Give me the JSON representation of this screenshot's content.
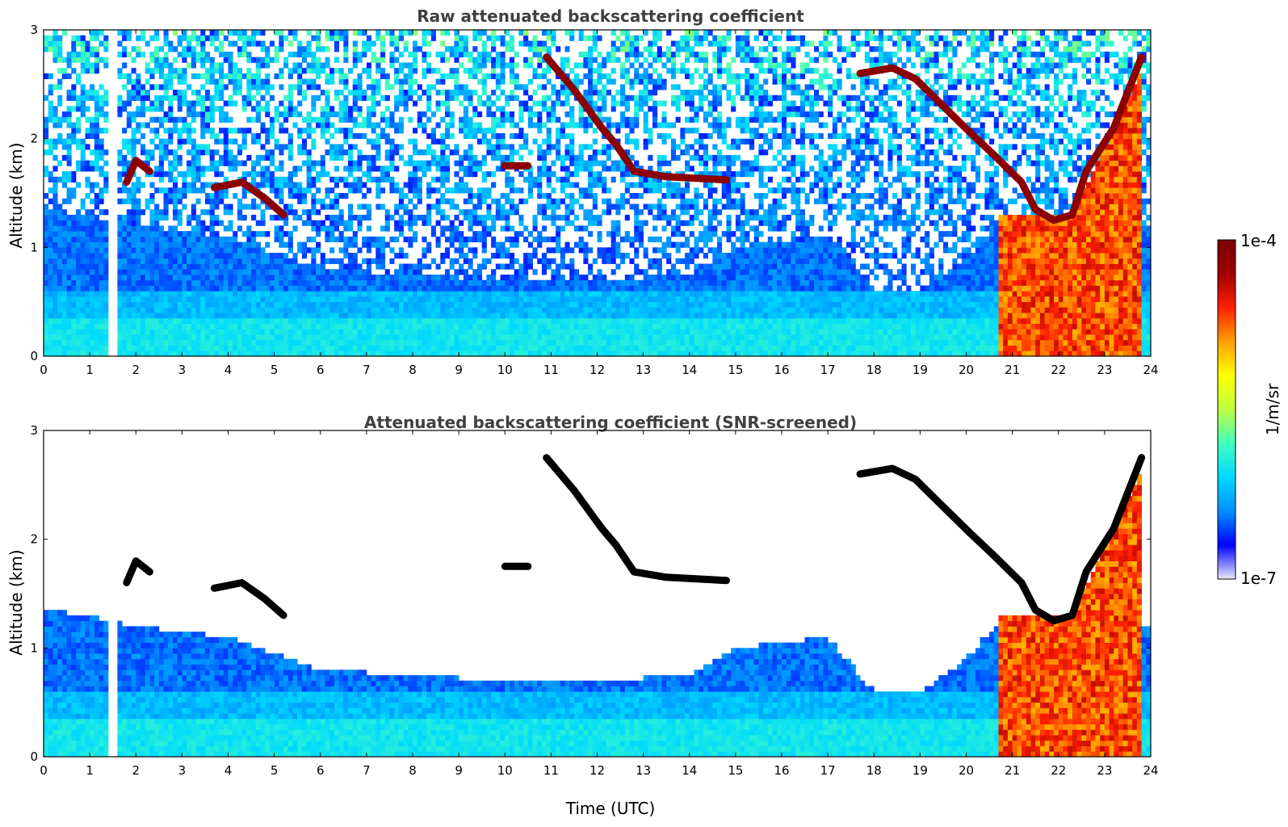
{
  "chart_data": [
    {
      "type": "heatmap",
      "title": "Raw attenuated backscattering coefficient",
      "xlabel": "",
      "ylabel": "Altitude (km)",
      "xlim": [
        0,
        24
      ],
      "ylim": [
        0,
        3
      ],
      "x_ticks": [
        "0",
        "1",
        "2",
        "3",
        "4",
        "5",
        "6",
        "7",
        "8",
        "9",
        "10",
        "11",
        "12",
        "13",
        "14",
        "15",
        "16",
        "17",
        "18",
        "19",
        "20",
        "21",
        "22",
        "23",
        "24"
      ],
      "y_ticks": [
        "0",
        "1",
        "2",
        "3"
      ],
      "snr_screened": false,
      "data_gaps_utc": [
        [
          1.45,
          1.56
        ],
        [
          5.0,
          5.03
        ],
        [
          5.09,
          5.12
        ],
        [
          5.17,
          5.2
        ]
      ],
      "boundary_layer_top_km": [
        [
          0,
          1.35
        ],
        [
          1,
          1.3
        ],
        [
          2,
          1.2
        ],
        [
          4,
          1.1
        ],
        [
          5,
          0.95
        ],
        [
          6,
          0.8
        ],
        [
          8,
          0.75
        ],
        [
          10,
          0.7
        ],
        [
          12,
          0.7
        ],
        [
          14,
          0.75
        ],
        [
          15,
          1.0
        ],
        [
          17,
          1.1
        ],
        [
          18,
          0.6
        ],
        [
          19,
          0.6
        ],
        [
          20,
          0.9
        ],
        [
          20.6,
          1.2
        ]
      ],
      "cloud_layers": [
        {
          "label": "",
          "points_utc_km": [
            [
              1.8,
              1.6
            ],
            [
              2.0,
              1.8
            ],
            [
              2.3,
              1.7
            ]
          ]
        },
        {
          "label": "",
          "points_utc_km": [
            [
              3.7,
              1.55
            ],
            [
              4.3,
              1.6
            ],
            [
              4.8,
              1.45
            ],
            [
              5.2,
              1.3
            ]
          ]
        },
        {
          "label": "",
          "points_utc_km": [
            [
              10.0,
              1.75
            ],
            [
              10.5,
              1.75
            ]
          ]
        },
        {
          "label": "",
          "points_utc_km": [
            [
              10.9,
              2.75
            ],
            [
              11.5,
              2.45
            ],
            [
              12.1,
              2.1
            ],
            [
              12.4,
              1.95
            ],
            [
              12.8,
              1.7
            ],
            [
              13.5,
              1.65
            ],
            [
              14.8,
              1.62
            ]
          ]
        },
        {
          "label": "",
          "points_utc_km": [
            [
              17.7,
              2.6
            ],
            [
              18.4,
              2.65
            ],
            [
              18.9,
              2.55
            ],
            [
              19.5,
              2.3
            ],
            [
              20.1,
              2.05
            ],
            [
              20.6,
              1.85
            ],
            [
              21.2,
              1.6
            ],
            [
              21.5,
              1.35
            ],
            [
              21.9,
              1.25
            ],
            [
              22.3,
              1.3
            ],
            [
              22.6,
              1.7
            ],
            [
              23.2,
              2.1
            ],
            [
              23.8,
              2.75
            ]
          ]
        }
      ],
      "precipitation_utc": [
        20.7,
        23.8
      ]
    },
    {
      "type": "heatmap",
      "title": "Attenuated backscattering coefficient (SNR-screened)",
      "xlabel": "Time (UTC)",
      "ylabel": "Altitude (km)",
      "xlim": [
        0,
        24
      ],
      "ylim": [
        0,
        3
      ],
      "x_ticks": [
        "0",
        "1",
        "2",
        "3",
        "4",
        "5",
        "6",
        "7",
        "8",
        "9",
        "10",
        "11",
        "12",
        "13",
        "14",
        "15",
        "16",
        "17",
        "18",
        "19",
        "20",
        "21",
        "22",
        "23",
        "24"
      ],
      "y_ticks": [
        "0",
        "1",
        "2",
        "3"
      ],
      "snr_screened": true,
      "data_gaps_utc": [
        [
          1.45,
          1.56
        ],
        [
          5.0,
          5.03
        ],
        [
          5.09,
          5.12
        ],
        [
          5.17,
          5.2
        ]
      ],
      "boundary_layer_top_km": [
        [
          0,
          1.35
        ],
        [
          1,
          1.3
        ],
        [
          2,
          1.2
        ],
        [
          4,
          1.1
        ],
        [
          5,
          0.95
        ],
        [
          6,
          0.8
        ],
        [
          8,
          0.75
        ],
        [
          10,
          0.7
        ],
        [
          12,
          0.7
        ],
        [
          14,
          0.75
        ],
        [
          15,
          1.0
        ],
        [
          17,
          1.1
        ],
        [
          18,
          0.6
        ],
        [
          19,
          0.6
        ],
        [
          20,
          0.9
        ],
        [
          20.6,
          1.2
        ]
      ],
      "cloud_layers": [
        {
          "label": "",
          "points_utc_km": [
            [
              1.8,
              1.6
            ],
            [
              2.0,
              1.8
            ],
            [
              2.3,
              1.7
            ]
          ]
        },
        {
          "label": "",
          "points_utc_km": [
            [
              3.7,
              1.55
            ],
            [
              4.3,
              1.6
            ],
            [
              4.8,
              1.45
            ],
            [
              5.2,
              1.3
            ]
          ]
        },
        {
          "label": "",
          "points_utc_km": [
            [
              10.0,
              1.75
            ],
            [
              10.5,
              1.75
            ]
          ]
        },
        {
          "label": "",
          "points_utc_km": [
            [
              10.9,
              2.75
            ],
            [
              11.5,
              2.45
            ],
            [
              12.1,
              2.1
            ],
            [
              12.4,
              1.95
            ],
            [
              12.8,
              1.7
            ],
            [
              13.5,
              1.65
            ],
            [
              14.8,
              1.62
            ]
          ]
        },
        {
          "label": "",
          "points_utc_km": [
            [
              17.7,
              2.6
            ],
            [
              18.4,
              2.65
            ],
            [
              18.9,
              2.55
            ],
            [
              19.5,
              2.3
            ],
            [
              20.1,
              2.05
            ],
            [
              20.6,
              1.85
            ],
            [
              21.2,
              1.6
            ],
            [
              21.5,
              1.35
            ],
            [
              21.9,
              1.25
            ],
            [
              22.3,
              1.3
            ],
            [
              22.6,
              1.7
            ],
            [
              23.2,
              2.1
            ],
            [
              23.8,
              2.75
            ]
          ]
        }
      ],
      "precipitation_utc": [
        20.7,
        23.8
      ]
    }
  ],
  "colorbar": {
    "label": "1/m/sr",
    "max_label": "1e-4",
    "min_label": "1e-7",
    "scale": "log",
    "colormap": [
      "#e8e8f8",
      "#0000ff",
      "#0090ff",
      "#00d8ff",
      "#40ffc0",
      "#c0ff40",
      "#ffff00",
      "#ffa000",
      "#ff2000",
      "#a00000",
      "#7a0000"
    ]
  }
}
